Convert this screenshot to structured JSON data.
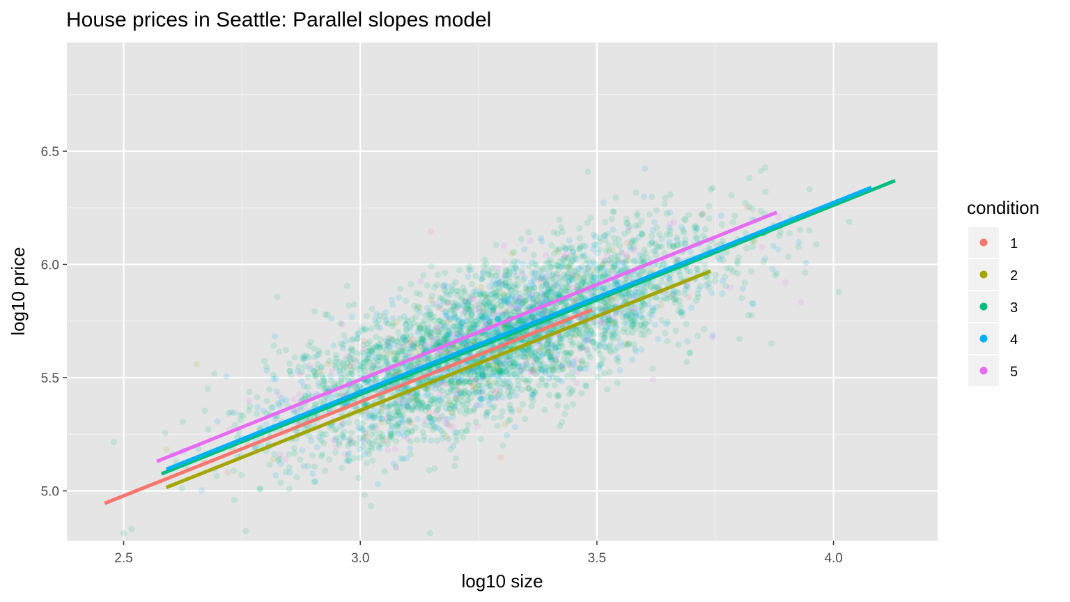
{
  "chart_data": {
    "type": "scatter",
    "title": "House prices in Seattle: Parallel slopes model",
    "xlabel": "log10 size",
    "ylabel": "log10 price",
    "xlim": [
      2.38,
      4.22
    ],
    "ylim": [
      4.78,
      6.98
    ],
    "x_ticks": [
      2.5,
      3.0,
      3.5,
      4.0
    ],
    "x_tick_labels": [
      "2.5",
      "3.0",
      "3.5",
      "4.0"
    ],
    "y_ticks": [
      5.0,
      5.5,
      6.0,
      6.5
    ],
    "y_tick_labels": [
      "5.0",
      "5.5",
      "6.0",
      "6.5"
    ],
    "x_minor_ticks": [
      2.75,
      3.25,
      3.75
    ],
    "y_minor_ticks": [
      5.25,
      5.75,
      6.25,
      6.75
    ],
    "grid": true,
    "background": "#e5e5e5",
    "legend": {
      "title": "condition",
      "position": "right",
      "entries": [
        {
          "label": "1",
          "color": "#f8766d"
        },
        {
          "label": "2",
          "color": "#a3a500"
        },
        {
          "label": "3",
          "color": "#00bf7d"
        },
        {
          "label": "4",
          "color": "#00b0f6"
        },
        {
          "label": "5",
          "color": "#e76bf3"
        }
      ]
    },
    "series": [
      {
        "name": "1",
        "color": "#f8766d",
        "fit_line": {
          "x": [
            2.46,
            3.49
          ],
          "y": [
            4.945,
            5.8
          ]
        }
      },
      {
        "name": "2",
        "color": "#a3a500",
        "fit_line": {
          "x": [
            2.59,
            3.74
          ],
          "y": [
            5.015,
            5.97
          ]
        }
      },
      {
        "name": "3",
        "color": "#00bf7d",
        "fit_line": {
          "x": [
            2.58,
            4.13
          ],
          "y": [
            5.075,
            6.37
          ]
        }
      },
      {
        "name": "4",
        "color": "#00b0f6",
        "fit_line": {
          "x": [
            2.59,
            4.08
          ],
          "y": [
            5.095,
            6.34
          ]
        }
      },
      {
        "name": "5",
        "color": "#e76bf3",
        "fit_line": {
          "x": [
            2.57,
            3.88
          ],
          "y": [
            5.13,
            6.23
          ]
        }
      }
    ],
    "scatter_notes": {
      "alpha": 0.15,
      "approx_points_shown": 21600,
      "center": {
        "x": 3.28,
        "y": 5.66
      }
    }
  }
}
